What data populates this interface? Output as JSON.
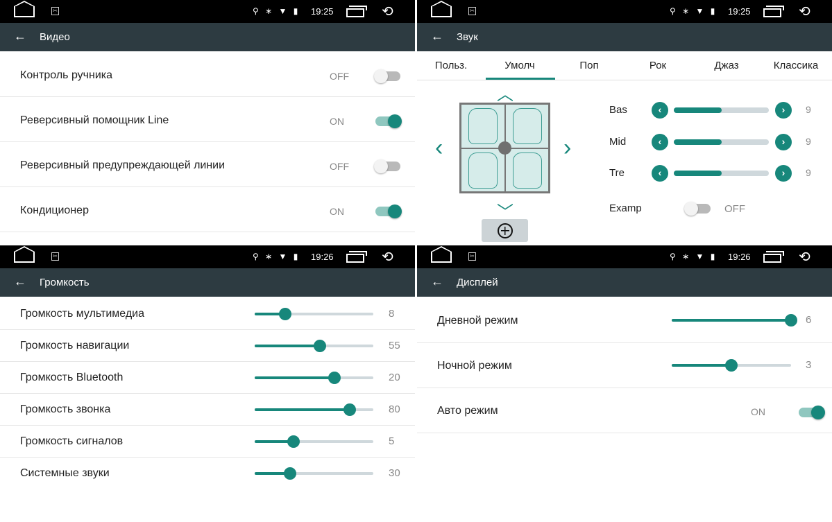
{
  "status_bars": [
    {
      "time": "19:25"
    },
    {
      "time": "19:25"
    },
    {
      "time": "19:26"
    },
    {
      "time": "19:26"
    }
  ],
  "video": {
    "title": "Видео",
    "rows": [
      {
        "label": "Контроль ручника",
        "state": "OFF",
        "on": false
      },
      {
        "label": "Реверсивный помощник Line",
        "state": "ON",
        "on": true
      },
      {
        "label": "Реверсивный предупреждающей линии",
        "state": "OFF",
        "on": false
      },
      {
        "label": "Кондиционер",
        "state": "ON",
        "on": true
      }
    ]
  },
  "sound": {
    "title": "Звук",
    "tabs": [
      "Польз.",
      "Умолч",
      "Поп",
      "Рок",
      "Джаз",
      "Классика"
    ],
    "active_tab": "Умолч",
    "eq": [
      {
        "label": "Bas",
        "value": "9",
        "level": 0.5
      },
      {
        "label": "Mid",
        "value": "9",
        "level": 0.5
      },
      {
        "label": "Tre",
        "value": "9",
        "level": 0.5
      }
    ],
    "examp": {
      "label": "Examp",
      "state": "OFF",
      "on": false
    }
  },
  "volume": {
    "title": "Громкость",
    "rows": [
      {
        "label": "Громкость мультимедиа",
        "value": "8",
        "level": 0.26
      },
      {
        "label": "Громкость навигации",
        "value": "55",
        "level": 0.55
      },
      {
        "label": "Громкость Bluetooth",
        "value": "20",
        "level": 0.67
      },
      {
        "label": "Громкость звонка",
        "value": "80",
        "level": 0.8
      },
      {
        "label": "Громкость сигналов",
        "value": "5",
        "level": 0.33
      },
      {
        "label": "Системные звуки",
        "value": "30",
        "level": 0.3
      }
    ]
  },
  "display": {
    "title": "Дисплей",
    "rows": [
      {
        "label": "Дневной режим",
        "value": "6",
        "level": 1.0
      },
      {
        "label": "Ночной режим",
        "value": "3",
        "level": 0.5
      }
    ],
    "auto": {
      "label": "Авто режим",
      "state": "ON",
      "on": true
    }
  },
  "colors": {
    "accent": "#17877b",
    "header": "#2d3b41",
    "status_bar": "#000000"
  }
}
